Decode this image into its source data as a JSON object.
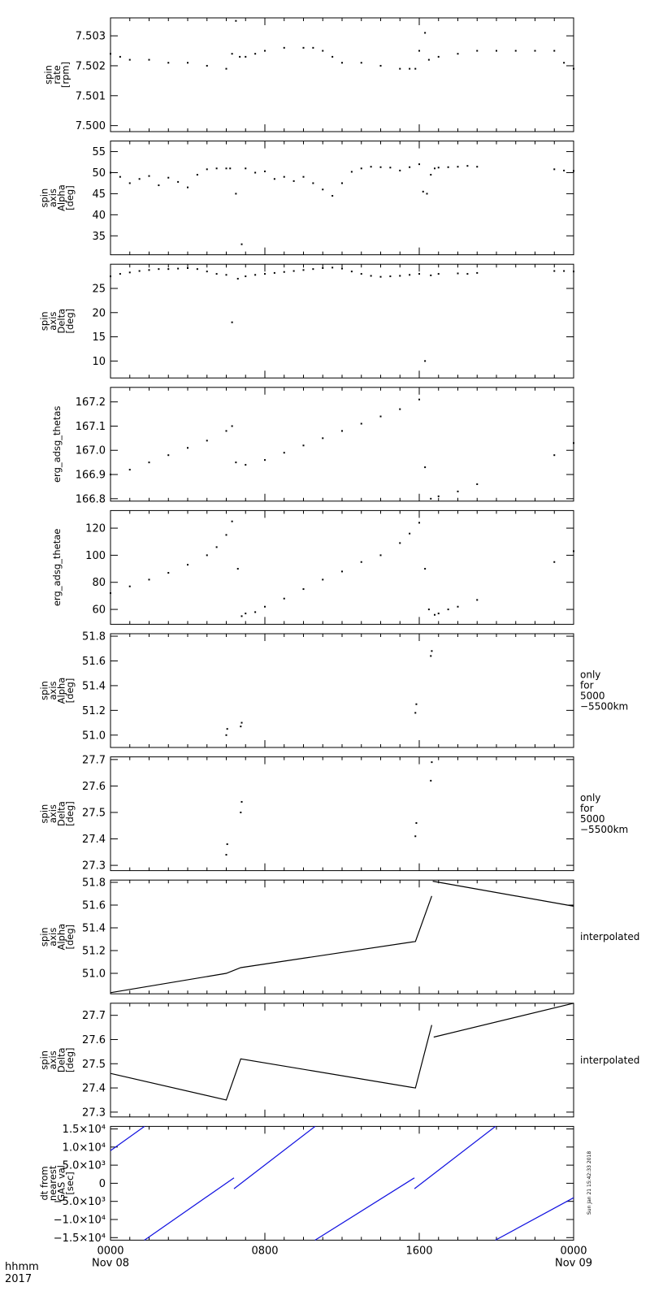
{
  "x_axis": {
    "title_line1": "hhmm",
    "title_line2": "2017",
    "ticks": [
      {
        "hour": 0,
        "hhmm": "0000",
        "date": "Nov 08"
      },
      {
        "hour": 8,
        "hhmm": "0800",
        "date": ""
      },
      {
        "hour": 16,
        "hhmm": "1600",
        "date": ""
      },
      {
        "hour": 24,
        "hhmm": "0000",
        "date": "Nov 09"
      }
    ],
    "minor_step_hours": 1,
    "range_hours": [
      0,
      24
    ]
  },
  "timestamp": "Sun Jan 21 15:42:33 2018",
  "chart_data": [
    {
      "type": "scatter",
      "ylabel_lines": [
        "spin",
        "rate",
        "[rpm]"
      ],
      "ylim": [
        7.4998,
        7.5036
      ],
      "yticks": [
        7.5,
        7.501,
        7.502,
        7.503
      ],
      "ytick_labels": [
        "7.500",
        "7.501",
        "7.502",
        "7.503"
      ],
      "right_note": [],
      "color": "#000000",
      "series": [
        {
          "x": [
            0,
            0.5,
            1,
            2,
            3,
            4,
            5,
            6,
            6.3,
            6.5,
            6.7,
            7,
            7.5,
            8,
            9,
            10,
            10.5,
            11,
            11.5,
            12,
            13,
            14,
            15,
            15.5,
            15.8,
            16,
            16.3,
            16.5,
            17,
            18,
            19,
            20,
            21,
            22,
            23,
            23.5,
            24
          ],
          "y": [
            7.5024,
            7.5023,
            7.5022,
            7.5022,
            7.5021,
            7.5021,
            7.502,
            7.5019,
            7.5024,
            7.5035,
            7.5023,
            7.5023,
            7.5024,
            7.5025,
            7.5026,
            7.5026,
            7.5026,
            7.5025,
            7.5023,
            7.5021,
            7.5021,
            7.502,
            7.5019,
            7.5019,
            7.5019,
            7.5025,
            7.5031,
            7.5022,
            7.5023,
            7.5024,
            7.5025,
            7.5025,
            7.5025,
            7.5025,
            7.5025,
            7.5021,
            7.5019
          ]
        }
      ]
    },
    {
      "type": "scatter",
      "ylabel_lines": [
        "spin",
        "axis",
        "Alpha",
        "[deg]"
      ],
      "ylim": [
        30.5,
        57.5
      ],
      "yticks": [
        35,
        40,
        45,
        50,
        55
      ],
      "ytick_labels": [
        "35",
        "40",
        "45",
        "50",
        "55"
      ],
      "right_note": [],
      "color": "#000000",
      "series": [
        {
          "x": [
            0,
            0.5,
            1,
            1.5,
            2,
            2.5,
            3,
            3.5,
            4,
            4.5,
            5,
            5.5,
            6,
            6.2,
            6.5,
            6.8,
            7,
            7.5,
            8,
            8.5,
            9,
            9.5,
            10,
            10.5,
            11,
            11.5,
            12,
            12.5,
            13,
            13.5,
            14,
            14.5,
            15,
            15.5,
            16,
            16.2,
            16.4,
            16.6,
            16.8,
            17,
            17.5,
            18,
            18.5,
            19,
            23,
            23.5,
            24
          ],
          "y": [
            50,
            49,
            47.5,
            48.5,
            49.2,
            47,
            48.8,
            47.8,
            46.5,
            49.5,
            50.8,
            51,
            51,
            51,
            45,
            33,
            51,
            50,
            50.3,
            48.5,
            49,
            48,
            49,
            47.5,
            46,
            44.5,
            47.5,
            50.2,
            51,
            51.4,
            51.3,
            51.2,
            50.5,
            51.3,
            52,
            45.5,
            45,
            49.5,
            51,
            51.2,
            51.3,
            51.4,
            51.6,
            51.4,
            50.8,
            50.5,
            50.4
          ]
        }
      ]
    },
    {
      "type": "scatter",
      "ylabel_lines": [
        "spin",
        "axis",
        "Delta",
        "[deg]"
      ],
      "ylim": [
        6.5,
        30
      ],
      "yticks": [
        10,
        15,
        20,
        25
      ],
      "ytick_labels": [
        "10",
        "15",
        "20",
        "25"
      ],
      "right_note": [],
      "color": "#000000",
      "series": [
        {
          "x": [
            0,
            0.5,
            1,
            1.5,
            2,
            2.5,
            3,
            3.5,
            4,
            4.5,
            5,
            5.5,
            6,
            6.3,
            6.6,
            7,
            7.5,
            8,
            8.5,
            9,
            9.5,
            10,
            10.5,
            11,
            11.5,
            12,
            12.5,
            13,
            13.5,
            14,
            14.5,
            15,
            15.5,
            16,
            16.3,
            16.6,
            17,
            18,
            18.5,
            19,
            23,
            23.5,
            24
          ],
          "y": [
            27.5,
            28,
            28.3,
            28.6,
            28.8,
            29,
            29,
            29.1,
            29.2,
            29,
            28.5,
            28,
            27.8,
            18,
            27,
            27.5,
            27.8,
            28,
            28.2,
            28.4,
            28.6,
            28.8,
            29,
            29.2,
            29.3,
            29.1,
            28.5,
            28,
            27.6,
            27.4,
            27.5,
            27.6,
            27.8,
            28,
            10,
            27.7,
            28,
            28.1,
            28,
            28.2,
            28.6,
            28.6,
            28.5
          ]
        }
      ]
    },
    {
      "type": "scatter",
      "ylabel_lines": [
        "erg_adsg_thetas"
      ],
      "ylim": [
        166.79,
        167.26
      ],
      "yticks": [
        166.8,
        166.9,
        167.0,
        167.1,
        167.2
      ],
      "ytick_labels": [
        "166.8",
        "166.9",
        "167.0",
        "167.1",
        "167.2"
      ],
      "right_note": [],
      "color": "#000000",
      "series": [
        {
          "x": [
            0,
            1,
            2,
            3,
            4,
            5,
            6,
            6.3,
            6.5,
            7,
            8,
            9,
            10,
            11,
            12,
            13,
            14,
            15,
            16,
            16.3,
            16.6,
            17,
            18,
            19,
            23,
            24
          ],
          "y": [
            166.9,
            166.92,
            166.95,
            166.98,
            167.01,
            167.04,
            167.08,
            167.1,
            166.95,
            166.94,
            166.96,
            166.99,
            167.02,
            167.05,
            167.08,
            167.11,
            167.14,
            167.17,
            167.21,
            166.93,
            166.8,
            166.81,
            166.83,
            166.86,
            166.98,
            167.03
          ]
        }
      ]
    },
    {
      "type": "scatter",
      "ylabel_lines": [
        "erg_adsg_thetae"
      ],
      "ylim": [
        49,
        133
      ],
      "yticks": [
        60,
        80,
        100,
        120
      ],
      "ytick_labels": [
        "60",
        "80",
        "100",
        "120"
      ],
      "right_note": [],
      "color": "#000000",
      "series": [
        {
          "x": [
            0,
            1,
            2,
            3,
            4,
            5,
            5.5,
            6,
            6.3,
            6.6,
            6.8,
            7,
            7.5,
            8,
            9,
            10,
            11,
            12,
            13,
            14,
            15,
            15.5,
            16,
            16.3,
            16.5,
            16.8,
            17,
            17.5,
            18,
            19,
            23,
            24
          ],
          "y": [
            72,
            77,
            82,
            87,
            93,
            100,
            106,
            115,
            125,
            90,
            55,
            57,
            58,
            62,
            68,
            75,
            82,
            88,
            95,
            100,
            109,
            116,
            124,
            90,
            60,
            56,
            57,
            60,
            62,
            67,
            95,
            103
          ]
        }
      ]
    },
    {
      "type": "scatter",
      "ylabel_lines": [
        "spin",
        "axis",
        "Alpha",
        "[deg]"
      ],
      "ylim": [
        50.9,
        51.82
      ],
      "yticks": [
        51.0,
        51.2,
        51.4,
        51.6,
        51.8
      ],
      "ytick_labels": [
        "51.0",
        "51.2",
        "51.4",
        "51.6",
        "51.8"
      ],
      "right_note": [
        "only",
        "for",
        "5000",
        "−5500km"
      ],
      "color": "#000000",
      "series": [
        {
          "x": [
            6.0,
            6.05,
            6.75,
            6.8,
            15.8,
            15.85,
            16.6,
            16.65
          ],
          "y": [
            51.0,
            51.05,
            51.07,
            51.1,
            51.18,
            51.25,
            51.64,
            51.68
          ]
        }
      ]
    },
    {
      "type": "scatter",
      "ylabel_lines": [
        "spin",
        "axis",
        "Delta",
        "[deg]"
      ],
      "ylim": [
        27.28,
        27.71
      ],
      "yticks": [
        27.3,
        27.4,
        27.5,
        27.6,
        27.7
      ],
      "ytick_labels": [
        "27.3",
        "27.4",
        "27.5",
        "27.6",
        "27.7"
      ],
      "right_note": [
        "only",
        "for",
        "5000",
        "−5500km"
      ],
      "color": "#000000",
      "series": [
        {
          "x": [
            6.0,
            6.05,
            6.75,
            6.8,
            15.8,
            15.85,
            16.6,
            16.65
          ],
          "y": [
            27.34,
            27.38,
            27.5,
            27.54,
            27.41,
            27.46,
            27.62,
            27.69
          ]
        }
      ]
    },
    {
      "type": "line",
      "ylabel_lines": [
        "spin",
        "axis",
        "Alpha",
        "[deg]"
      ],
      "ylim": [
        50.82,
        51.82
      ],
      "yticks": [
        51.0,
        51.2,
        51.4,
        51.6,
        51.8
      ],
      "ytick_labels": [
        "51.0",
        "51.2",
        "51.4",
        "51.6",
        "51.8"
      ],
      "right_note": [
        "interpolated"
      ],
      "color": "#000000",
      "series": [
        {
          "x": [
            0,
            6.0,
            6.75,
            15.8,
            16.65
          ],
          "y": [
            50.83,
            51.0,
            51.05,
            51.28,
            51.68
          ]
        },
        {
          "x": [
            16.7,
            24
          ],
          "y": [
            51.81,
            51.59
          ]
        }
      ]
    },
    {
      "type": "line",
      "ylabel_lines": [
        "spin",
        "axis",
        "Delta",
        "[deg]"
      ],
      "ylim": [
        27.28,
        27.75
      ],
      "yticks": [
        27.3,
        27.4,
        27.5,
        27.6,
        27.7
      ],
      "ytick_labels": [
        "27.3",
        "27.4",
        "27.5",
        "27.6",
        "27.7"
      ],
      "right_note": [
        "interpolated"
      ],
      "color": "#000000",
      "series": [
        {
          "x": [
            0,
            6.0,
            6.75,
            15.8,
            16.65
          ],
          "y": [
            27.46,
            27.35,
            27.52,
            27.4,
            27.66
          ]
        },
        {
          "x": [
            16.75,
            24
          ],
          "y": [
            27.61,
            27.75
          ]
        }
      ]
    },
    {
      "type": "line",
      "ylabel_lines": [
        "dt from",
        "nearest",
        "GAS val",
        "[sec]"
      ],
      "ylim": [
        -15700,
        15700
      ],
      "yticks": [
        -15000,
        -10000,
        -5000,
        0,
        5000,
        10000,
        15000
      ],
      "ytick_labels": [
        "−1.5×10⁴",
        "−1.0×10⁴",
        "−5.0×10³",
        "0",
        "5.0×10³",
        "1.0×10⁴",
        "1.5×10⁴"
      ],
      "right_note": [],
      "color": "#1010e0",
      "series": [
        {
          "x": [
            0,
            1.76
          ],
          "y": [
            9000,
            15700
          ]
        },
        {
          "x": [
            1.76,
            6.4
          ],
          "y": [
            -15700,
            1500
          ]
        },
        {
          "x": [
            6.4,
            10.6
          ],
          "y": [
            -1500,
            15700
          ]
        },
        {
          "x": [
            10.6,
            15.75
          ],
          "y": [
            -15700,
            1500
          ]
        },
        {
          "x": [
            15.75,
            19.95
          ],
          "y": [
            -1500,
            15700
          ]
        },
        {
          "x": [
            19.95,
            24
          ],
          "y": [
            -15700,
            -4000
          ]
        }
      ]
    }
  ]
}
